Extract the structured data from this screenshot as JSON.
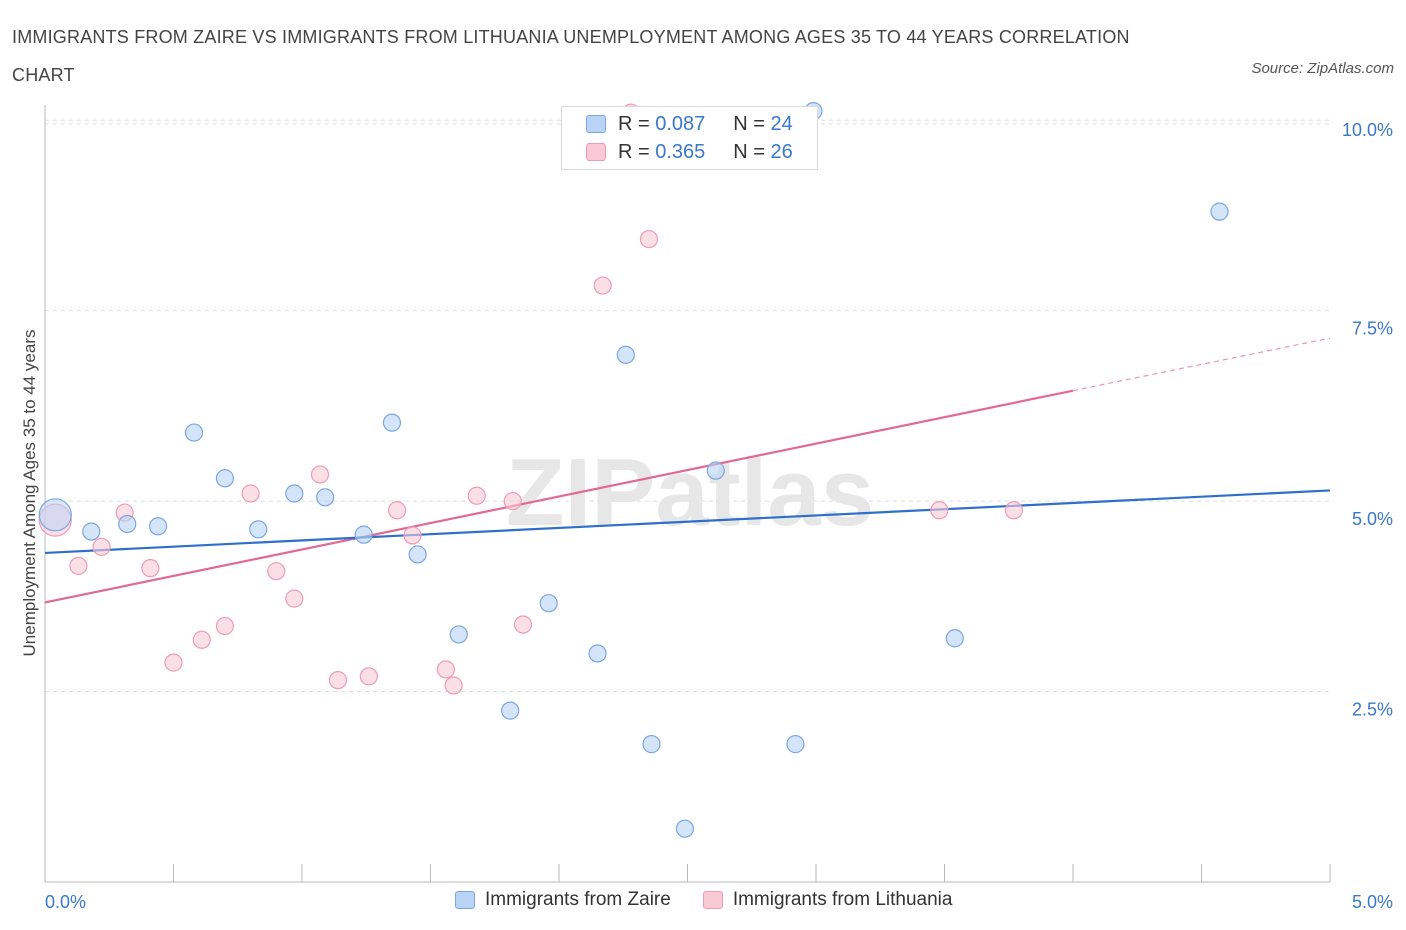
{
  "title": "IMMIGRANTS FROM ZAIRE VS IMMIGRANTS FROM LITHUANIA UNEMPLOYMENT AMONG AGES 35 TO 44 YEARS CORRELATION CHART",
  "source": "Source: ZipAtlas.com",
  "watermark": "ZIPatlas",
  "legend": {
    "zaire": {
      "r_label": "R = ",
      "r_value": "0.087",
      "n_label": "N = ",
      "n_value": "24"
    },
    "lithuania": {
      "r_label": "R = ",
      "r_value": "0.365",
      "n_label": "N = ",
      "n_value": "26"
    }
  },
  "bottom_legend": {
    "zaire": "Immigrants from Zaire",
    "lithuania": "Immigrants from Lithuania"
  },
  "colors": {
    "zaire_fill": "#b9d3f5",
    "zaire_stroke": "#7ba6e0",
    "zaire_line": "#2f6fcc",
    "lithuania_fill": "#f9c9d6",
    "lithuania_stroke": "#ee9db4",
    "lithuania_line": "#e06a92",
    "tick_label": "#3a78c9",
    "grid": "#dddddd"
  },
  "chart_data": {
    "type": "scatter",
    "title": "IMMIGRANTS FROM ZAIRE VS IMMIGRANTS FROM LITHUANIA UNEMPLOYMENT AMONG AGES 35 TO 44 YEARS CORRELATION CHART",
    "xlabel": "",
    "ylabel": "Unemployment Among Ages 35 to 44 years",
    "xlim": [
      0,
      5
    ],
    "ylim": [
      0,
      10.2
    ],
    "x_tick_labels": [
      "0.0%",
      "5.0%"
    ],
    "y_ticks": [
      2.5,
      5.0,
      7.5,
      10.0
    ],
    "y_tick_labels": [
      "2.5%",
      "5.0%",
      "7.5%",
      "10.0%"
    ],
    "grid": "horizontal dashed",
    "legend_position": "top-center",
    "series": [
      {
        "name": "Immigrants from Zaire",
        "points": [
          {
            "x": 0.04,
            "y": 4.82,
            "size": "large"
          },
          {
            "x": 0.18,
            "y": 4.6
          },
          {
            "x": 0.32,
            "y": 4.7
          },
          {
            "x": 0.44,
            "y": 4.67
          },
          {
            "x": 0.58,
            "y": 5.9
          },
          {
            "x": 0.7,
            "y": 5.3
          },
          {
            "x": 0.83,
            "y": 4.63
          },
          {
            "x": 0.97,
            "y": 5.1
          },
          {
            "x": 1.09,
            "y": 5.05
          },
          {
            "x": 1.24,
            "y": 4.56
          },
          {
            "x": 1.35,
            "y": 6.03
          },
          {
            "x": 1.45,
            "y": 4.3
          },
          {
            "x": 1.61,
            "y": 3.25
          },
          {
            "x": 1.81,
            "y": 2.25
          },
          {
            "x": 1.96,
            "y": 3.66
          },
          {
            "x": 2.15,
            "y": 3.0
          },
          {
            "x": 2.26,
            "y": 6.92
          },
          {
            "x": 2.36,
            "y": 1.81
          },
          {
            "x": 2.49,
            "y": 0.7
          },
          {
            "x": 2.61,
            "y": 5.4
          },
          {
            "x": 2.92,
            "y": 1.81
          },
          {
            "x": 2.99,
            "y": 10.12
          },
          {
            "x": 3.54,
            "y": 3.2
          },
          {
            "x": 4.57,
            "y": 8.8
          }
        ],
        "trend": {
          "x": [
            0.0,
            5.0
          ],
          "y": [
            4.32,
            5.14
          ]
        }
      },
      {
        "name": "Immigrants from Lithuania",
        "points": [
          {
            "x": 0.04,
            "y": 4.75,
            "size": "large"
          },
          {
            "x": 0.13,
            "y": 4.15
          },
          {
            "x": 0.22,
            "y": 4.4
          },
          {
            "x": 0.31,
            "y": 4.85
          },
          {
            "x": 0.41,
            "y": 4.12
          },
          {
            "x": 0.5,
            "y": 2.88
          },
          {
            "x": 0.61,
            "y": 3.18
          },
          {
            "x": 0.7,
            "y": 3.36
          },
          {
            "x": 0.8,
            "y": 5.1
          },
          {
            "x": 0.9,
            "y": 4.08
          },
          {
            "x": 0.97,
            "y": 3.72
          },
          {
            "x": 1.07,
            "y": 5.35
          },
          {
            "x": 1.14,
            "y": 2.65
          },
          {
            "x": 1.26,
            "y": 2.7
          },
          {
            "x": 1.37,
            "y": 4.88
          },
          {
            "x": 1.43,
            "y": 4.55
          },
          {
            "x": 1.56,
            "y": 2.79
          },
          {
            "x": 1.59,
            "y": 2.58
          },
          {
            "x": 1.68,
            "y": 5.07
          },
          {
            "x": 1.82,
            "y": 5.0
          },
          {
            "x": 1.86,
            "y": 3.38
          },
          {
            "x": 2.17,
            "y": 7.83
          },
          {
            "x": 2.28,
            "y": 10.1
          },
          {
            "x": 2.35,
            "y": 8.44
          },
          {
            "x": 3.48,
            "y": 4.88
          },
          {
            "x": 3.77,
            "y": 4.88
          }
        ],
        "trend": {
          "x": [
            0.0,
            4.0
          ],
          "y": [
            3.67,
            6.45
          ]
        },
        "trend_extension": {
          "x": [
            4.0,
            5.0
          ],
          "y": [
            6.45,
            7.14
          ]
        }
      }
    ]
  }
}
